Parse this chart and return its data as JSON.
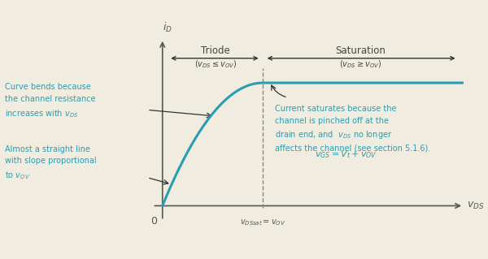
{
  "bg_color": "#f0ece0",
  "curve_color": "#2a9db0",
  "axis_color": "#555555",
  "text_color_dark": "#444444",
  "text_color_blue": "#2a9db0",
  "arrow_color": "#333333",
  "dashed_color": "#888888",
  "triode_label": "Triode",
  "triode_sub": "($v_{DS} \\leq v_{OV}$)",
  "sat_label": "Saturation",
  "sat_sub": "($v_{DS} \\geq v_{OV}$)",
  "ann1": [
    "Curve bends because",
    "the channel resistance",
    "increases with $v_{DS}$"
  ],
  "ann2": [
    "Almost a straight line",
    "with slope proportional",
    "to $v_{OV}$"
  ],
  "ann3": [
    "Current saturates because the",
    "channel is pinched off at the",
    "drain end, and  $v_{DS}$ no longer",
    "affects the channel (see section 5.1.6)."
  ],
  "equation": "$v_{GS} = V_t + v_{OV}$",
  "xlabel": "$v_{DS}$",
  "ylabel": "$i_D$",
  "xsat_label": "$v_{DSsat} = v_{OV}$",
  "origin_label": "0",
  "vov": 2.5,
  "isat": 1.0,
  "xmax": 7.5,
  "ymax": 1.4
}
